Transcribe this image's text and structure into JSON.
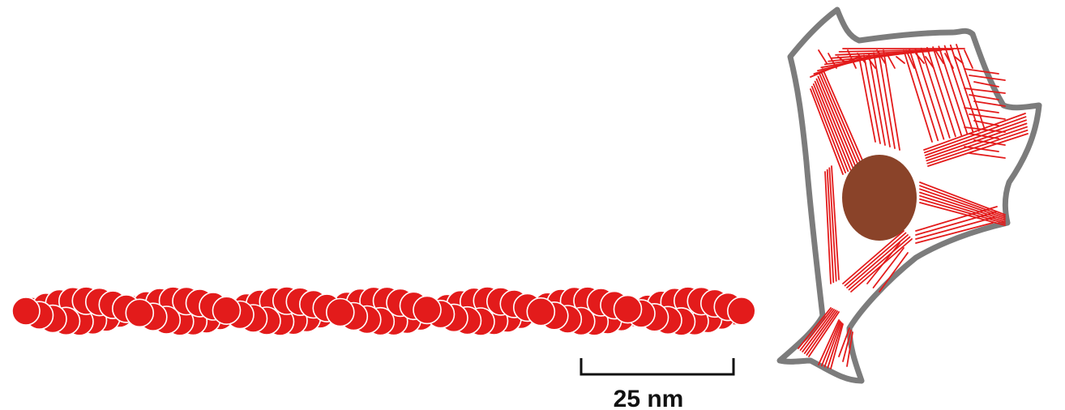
{
  "scale_bar": {
    "label": "25 nm"
  },
  "colors": {
    "filament": "#e31b1b",
    "filament_outline": "#ffffff",
    "cell_membrane": "#7c7c7c",
    "cell_fill": "#ffffff",
    "nucleus": "#8a4329",
    "fiber": "#e31b1b",
    "scale_bar": "#111111"
  }
}
